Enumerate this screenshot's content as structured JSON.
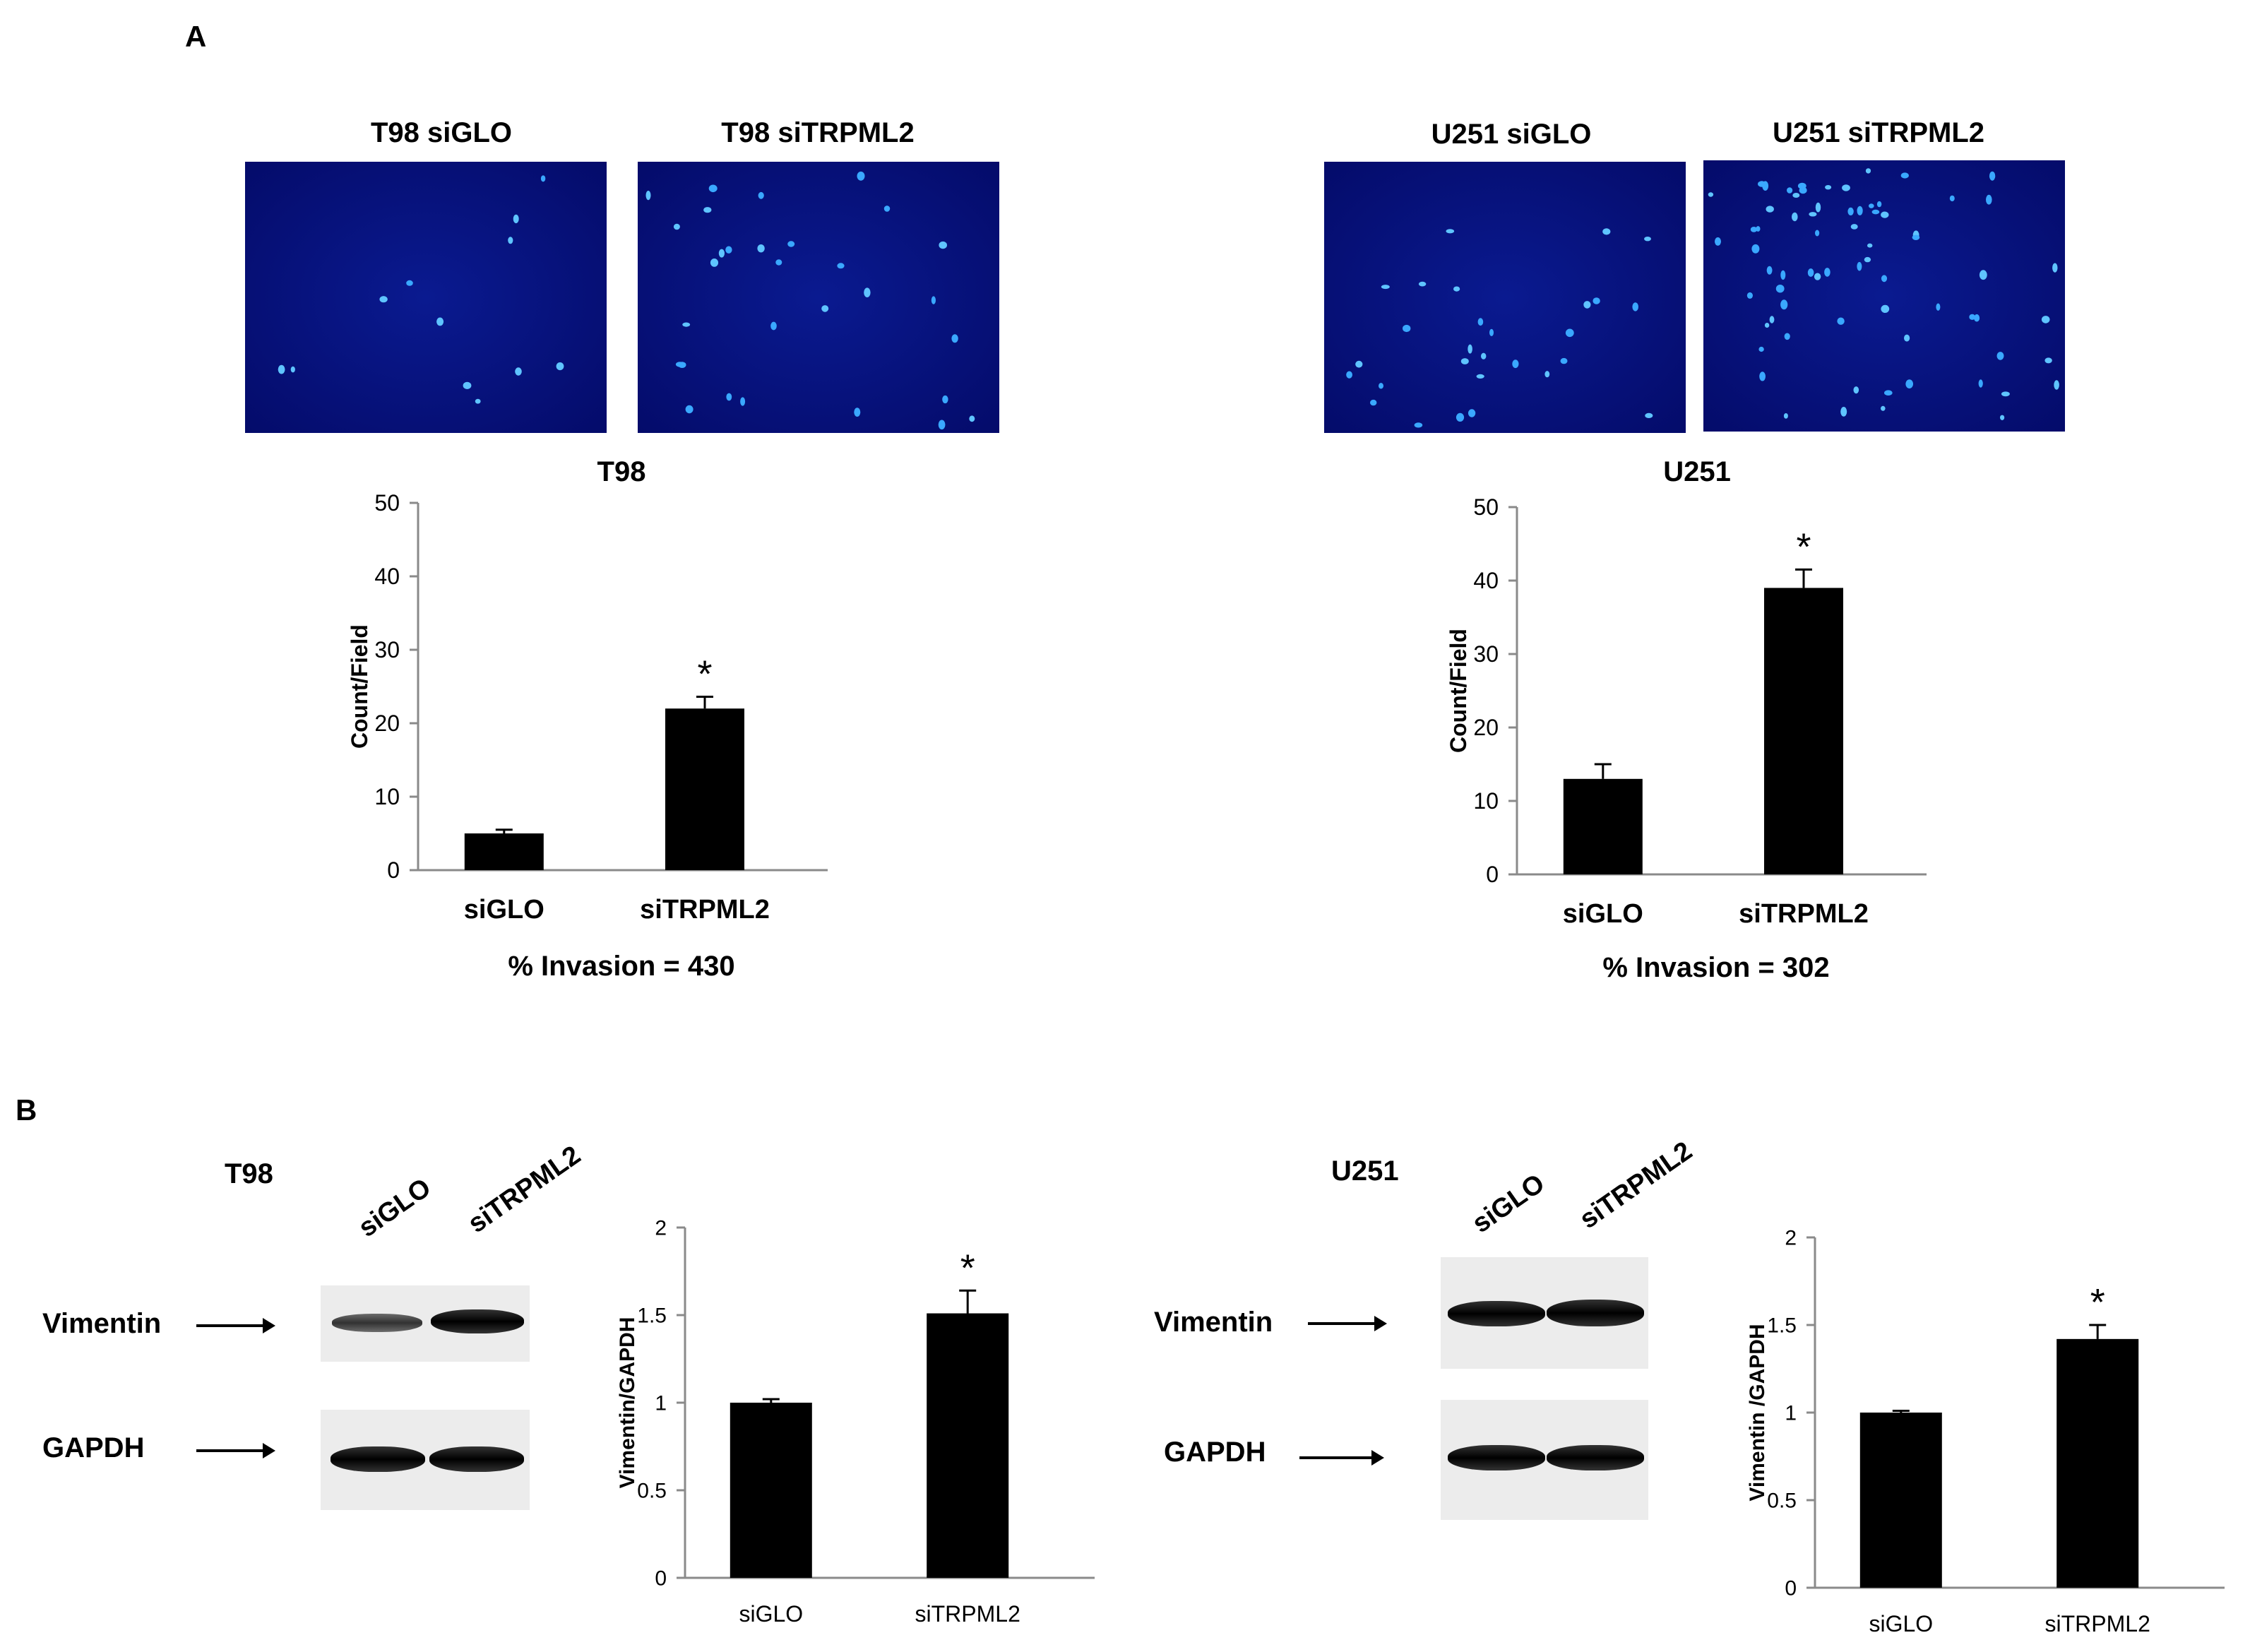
{
  "panel_a": {
    "letter": "A",
    "images": [
      {
        "title": "T98 siGLO"
      },
      {
        "title": "T98 siTRPML2"
      },
      {
        "title": "U251 siGLO"
      },
      {
        "title": "U251 siTRPML2"
      }
    ],
    "t98_invasion": "% Invasion = 430",
    "u251_invasion": "% Invasion = 302"
  },
  "panel_b": {
    "letter": "B",
    "t98": {
      "cell_line": "T98",
      "lanes": [
        "siGLO",
        "siTRPML2"
      ],
      "vimentin_label": "Vimentin",
      "gapdh_label": "GAPDH"
    },
    "u251": {
      "cell_line": "U251",
      "lanes": [
        "siGLO",
        "siTRPML2"
      ],
      "vimentin_label": "Vimentin",
      "gapdh_label": "GAPDH"
    }
  },
  "chart_data": [
    {
      "type": "bar",
      "title": "T98",
      "ylabel": "Count/Field",
      "xlabel": "",
      "categories": [
        "siGLO",
        "siTRPML2"
      ],
      "values": [
        5,
        22
      ],
      "errors": [
        0.5,
        1.6
      ],
      "significance": [
        "",
        "*"
      ],
      "ylim": [
        0,
        50
      ],
      "yticks": [
        0,
        10,
        20,
        30,
        40,
        50
      ],
      "bold_ticks": true
    },
    {
      "type": "bar",
      "title": "U251",
      "ylabel": "Count/Field",
      "xlabel": "",
      "categories": [
        "siGLO",
        "siTRPML2"
      ],
      "values": [
        13,
        39
      ],
      "errors": [
        2,
        2.5
      ],
      "significance": [
        "",
        "*"
      ],
      "ylim": [
        0,
        50
      ],
      "yticks": [
        0,
        10,
        20,
        30,
        40,
        50
      ],
      "bold_ticks": true
    },
    {
      "type": "bar",
      "title": "",
      "ylabel": "Vimentin/GAPDH",
      "xlabel": "",
      "categories": [
        "siGLO",
        "siTRPML2"
      ],
      "values": [
        1.0,
        1.51
      ],
      "errors": [
        0.02,
        0.13
      ],
      "significance": [
        "",
        "*"
      ],
      "ylim": [
        0,
        2
      ],
      "yticks": [
        "0",
        "0.5",
        "1",
        "1.5",
        "2"
      ],
      "bold_ticks": false
    },
    {
      "type": "bar",
      "title": "",
      "ylabel": "Vimentin /GAPDH",
      "xlabel": "",
      "categories": [
        "siGLO",
        "siTRPML2"
      ],
      "values": [
        1.0,
        1.42
      ],
      "errors": [
        0.01,
        0.08
      ],
      "significance": [
        "",
        "*"
      ],
      "ylim": [
        0,
        2
      ],
      "yticks": [
        "0",
        "0.5",
        "1",
        "1.5",
        "2"
      ],
      "bold_ticks": false
    }
  ]
}
